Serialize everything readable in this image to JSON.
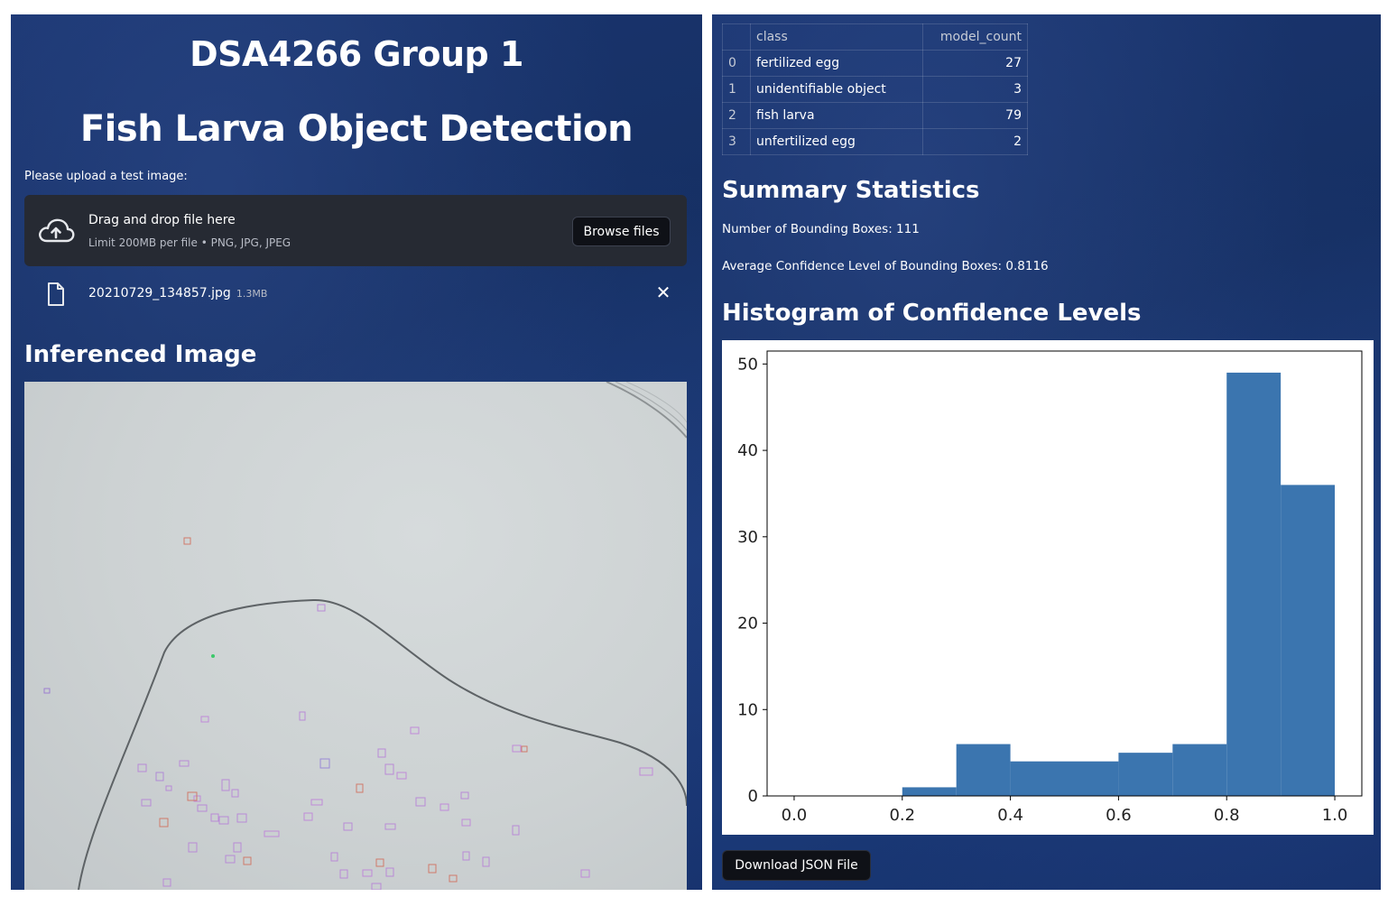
{
  "left": {
    "title_line1": "DSA4266 Group 1",
    "title_line2": "Fish Larva Object Detection",
    "upload_label": "Please upload a test image:",
    "dropzone": {
      "main_text": "Drag and drop file here",
      "sub_text": "Limit 200MB per file • PNG, JPG, JPEG",
      "browse_label": "Browse files"
    },
    "uploaded_file": {
      "name": "20210729_134857.jpg",
      "size": "1.3MB"
    },
    "inferenced_heading": "Inferenced Image"
  },
  "right": {
    "table": {
      "headers": [
        "",
        "class",
        "model_count"
      ],
      "rows": [
        {
          "index": "0",
          "class": "fertilized egg",
          "count": "27"
        },
        {
          "index": "1",
          "class": "unidentifiable object",
          "count": "3"
        },
        {
          "index": "2",
          "class": "fish larva",
          "count": "79"
        },
        {
          "index": "3",
          "class": "unfertilized egg",
          "count": "2"
        }
      ]
    },
    "summary_heading": "Summary Statistics",
    "num_boxes_line": "Number of Bounding Boxes: 111",
    "avg_conf_line": "Average Confidence Level of Bounding Boxes: 0.8116",
    "histogram_heading": "Histogram of Confidence Levels",
    "download_label": "Download JSON File"
  },
  "colors": {
    "bar": "#3b75af",
    "panel_bg": "#1a3570",
    "dropzone_bg": "#262a33"
  },
  "chart_data": {
    "type": "bar",
    "bins": [
      [
        0.2,
        0.3
      ],
      [
        0.3,
        0.4
      ],
      [
        0.4,
        0.5
      ],
      [
        0.5,
        0.6
      ],
      [
        0.6,
        0.7
      ],
      [
        0.7,
        0.8
      ],
      [
        0.8,
        0.9
      ],
      [
        0.9,
        1.0
      ]
    ],
    "values": [
      1,
      6,
      4,
      4,
      5,
      6,
      49,
      36
    ],
    "title": "",
    "xlabel": "",
    "ylabel": "",
    "xlim": [
      -0.05,
      1.05
    ],
    "ylim": [
      0,
      51.5
    ],
    "xticks": [
      "0.0",
      "0.2",
      "0.4",
      "0.6",
      "0.8",
      "1.0"
    ],
    "yticks": [
      "0",
      "10",
      "20",
      "30",
      "40",
      "50"
    ],
    "grid": false
  }
}
